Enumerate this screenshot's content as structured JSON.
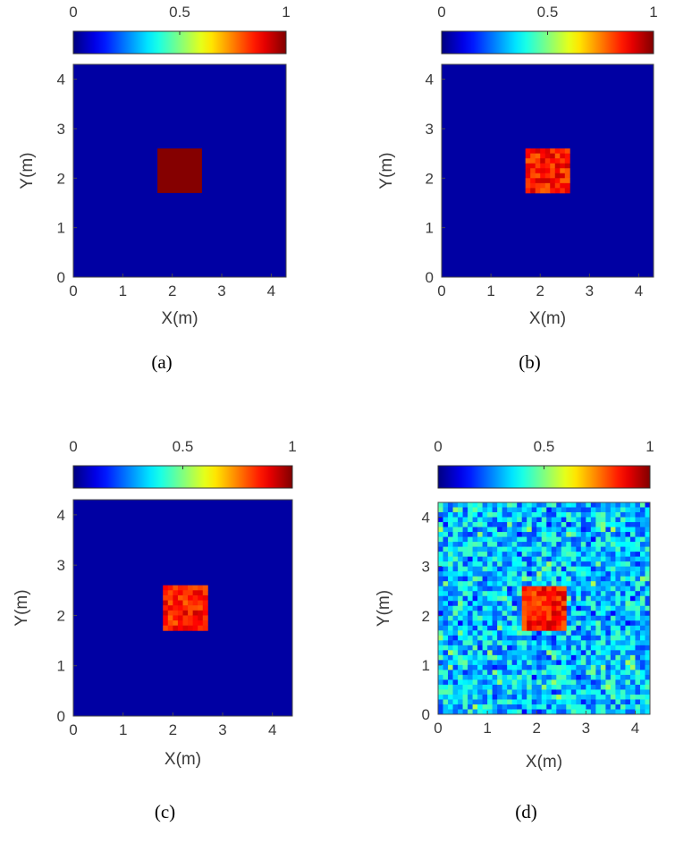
{
  "figure": {
    "panels": [
      {
        "caption": "(a)"
      },
      {
        "caption": "(b)"
      },
      {
        "caption": "(c)"
      },
      {
        "caption": "(d)"
      }
    ]
  },
  "chart_data": [
    {
      "type": "heatmap",
      "xlabel": "X(m)",
      "ylabel": "Y(m)",
      "xlim": [
        0,
        4.3
      ],
      "ylim": [
        0,
        4.3
      ],
      "xticks": [
        "0",
        "1",
        "2",
        "3",
        "4"
      ],
      "yticks": [
        "0",
        "1",
        "2",
        "3",
        "4"
      ],
      "colorbar": {
        "ticks": [
          "0",
          "0.5",
          "1"
        ],
        "range": [
          0,
          1
        ],
        "colormap": "jet",
        "placement": "top"
      },
      "background_value": 0,
      "target": {
        "x_range": [
          1.7,
          2.6
        ],
        "y_range": [
          1.7,
          2.6
        ],
        "value": 0.95,
        "variation": 0
      },
      "grid_cells": 0
    },
    {
      "type": "heatmap",
      "xlabel": "X(m)",
      "ylabel": "Y(m)",
      "xlim": [
        0,
        4.3
      ],
      "ylim": [
        0,
        4.3
      ],
      "xticks": [
        "0",
        "1",
        "2",
        "3",
        "4"
      ],
      "yticks": [
        "0",
        "1",
        "2",
        "3",
        "4"
      ],
      "colorbar": {
        "ticks": [
          "0",
          "0.5",
          "1"
        ],
        "range": [
          0,
          1
        ],
        "colormap": "jet",
        "placement": "top"
      },
      "background_value": 0,
      "target": {
        "x_range": [
          1.7,
          2.6
        ],
        "y_range": [
          1.7,
          2.6
        ],
        "value": 0.85,
        "variation": 0.08
      },
      "grid_cells": 0
    },
    {
      "type": "heatmap",
      "xlabel": "X(m)",
      "ylabel": "Y(m)",
      "xlim": [
        0,
        4.4
      ],
      "ylim": [
        0,
        4.3
      ],
      "xticks": [
        "0",
        "1",
        "2",
        "3",
        "4"
      ],
      "yticks": [
        "0",
        "1",
        "2",
        "3",
        "4"
      ],
      "colorbar": {
        "ticks": [
          "0",
          "0.5",
          "1"
        ],
        "range": [
          0,
          1
        ],
        "colormap": "jet",
        "placement": "top"
      },
      "background_value": 0,
      "target": {
        "x_range": [
          1.8,
          2.7
        ],
        "y_range": [
          1.7,
          2.6
        ],
        "value": 0.85,
        "variation": 0.08
      },
      "grid_cells": 0
    },
    {
      "type": "heatmap",
      "xlabel": "X(m)",
      "ylabel": "Y(m)",
      "xlim": [
        0,
        4.3
      ],
      "ylim": [
        0,
        4.3
      ],
      "xticks": [
        "0",
        "1",
        "2",
        "3",
        "4"
      ],
      "yticks": [
        "0",
        "1",
        "2",
        "3",
        "4"
      ],
      "colorbar": {
        "ticks": [
          "0",
          "0.5",
          "1"
        ],
        "range": [
          0,
          1
        ],
        "colormap": "jet",
        "placement": "top"
      },
      "background_value": 0.32,
      "background_variation": 0.14,
      "target": {
        "x_range": [
          1.7,
          2.6
        ],
        "y_range": [
          1.7,
          2.6
        ],
        "value": 0.85,
        "variation": 0.08
      },
      "grid_cells": 43
    }
  ]
}
